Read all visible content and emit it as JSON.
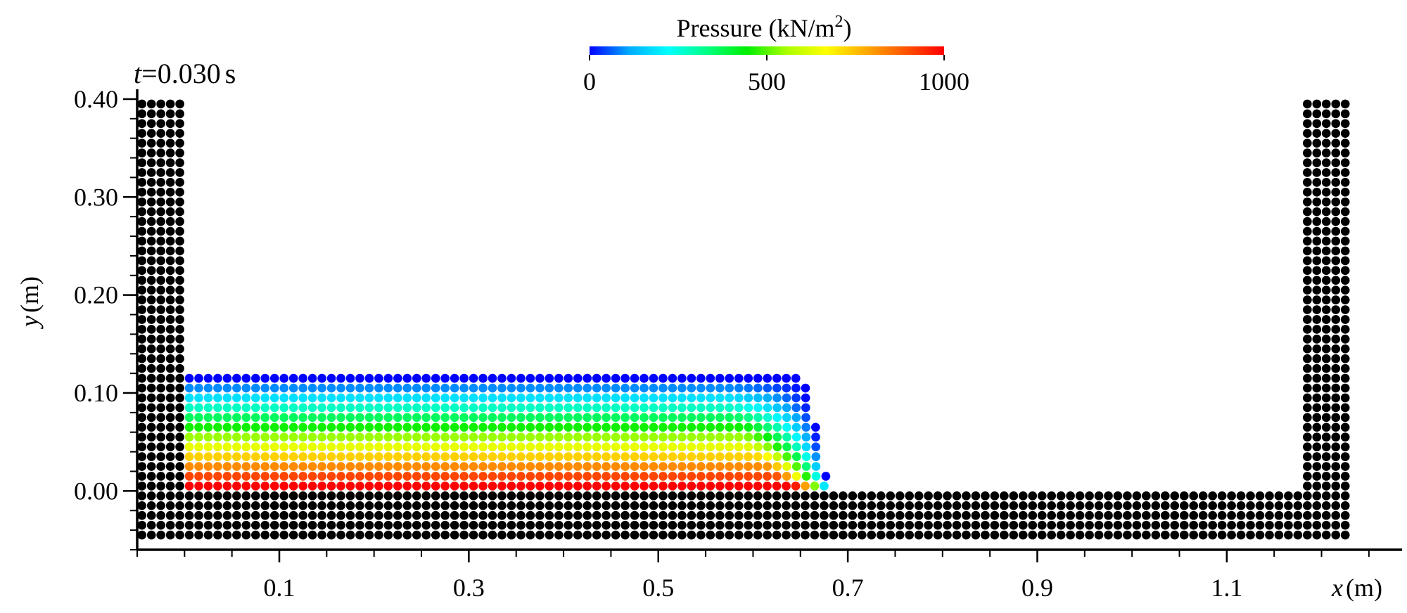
{
  "chart_data": {
    "type": "scatter",
    "title": "",
    "time_label": {
      "var": "t",
      "eq": "=",
      "value": "0.030",
      "unit": "s"
    },
    "xlabel": {
      "var": "x",
      "unit": "(m)"
    },
    "ylabel": {
      "var": "y",
      "unit": "(m)"
    },
    "xlim": [
      -0.05,
      1.285
    ],
    "ylim": [
      -0.06,
      0.41
    ],
    "x_ticks": [
      0.1,
      0.3,
      0.5,
      0.7,
      0.9,
      1.1
    ],
    "x_tick_labels": [
      "0.1",
      "0.3",
      "0.5",
      "0.7",
      "0.9",
      "1.1"
    ],
    "y_ticks": [
      0.0,
      0.1,
      0.2,
      0.3,
      0.4
    ],
    "y_tick_labels": [
      "0.00",
      "0.10",
      "0.20",
      "0.30",
      "0.40"
    ],
    "grid": false,
    "particle_spacing": 0.01,
    "colorbar": {
      "label_main": "Pressure (kN/m",
      "label_sup": "2",
      "label_tail": ")",
      "min": 0,
      "max": 1000,
      "ticks": [
        0,
        500,
        1000
      ],
      "tick_labels": [
        "0",
        "500",
        "1000"
      ],
      "colormap": [
        "#0000ff",
        "#00aaff",
        "#00ffff",
        "#00ff80",
        "#00ee00",
        "#aaff00",
        "#ffff00",
        "#ffaa00",
        "#ff5500",
        "#ff0000"
      ]
    },
    "series": [
      {
        "kind": "boundary",
        "color": "#000000",
        "regions": [
          {
            "x_range": [
              -0.045,
              -0.005
            ],
            "y_range": [
              -0.045,
              0.395
            ]
          },
          {
            "x_range": [
              1.185,
              1.225
            ],
            "y_range": [
              -0.045,
              0.395
            ]
          },
          {
            "x_range": [
              0.005,
              1.175
            ],
            "y_range": [
              -0.045,
              -0.005
            ]
          }
        ]
      },
      {
        "kind": "fluid",
        "x_start": 0.005,
        "y_start": 0.005,
        "rows": 12,
        "row_top_x": [
          0.68,
          0.675,
          0.673,
          0.671,
          0.669,
          0.667,
          0.665,
          0.663,
          0.66,
          0.657,
          0.655,
          0.653
        ],
        "row_slant_start": [
          0.64,
          0.62,
          0.61,
          0.6,
          0.59,
          0.585,
          0.58,
          0.575,
          0.57,
          0.57,
          0.57,
          0.57
        ],
        "pressure_bottom": 1000,
        "pressure_top": 0
      }
    ]
  }
}
